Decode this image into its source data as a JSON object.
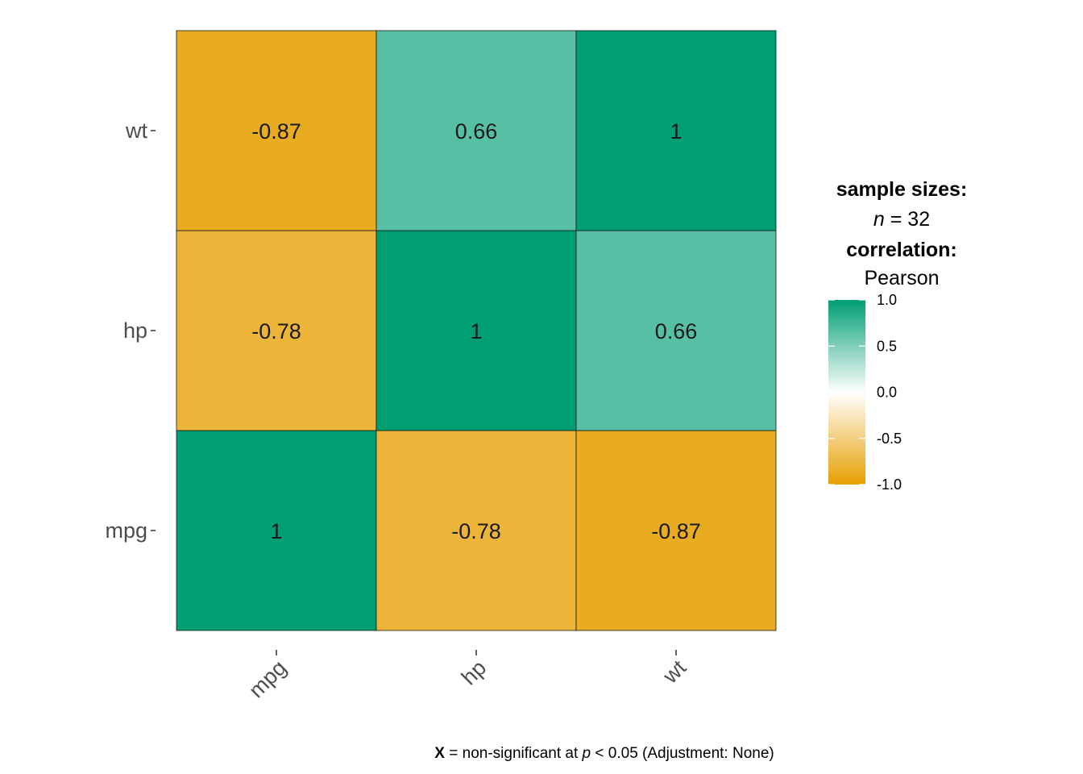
{
  "chart_data": {
    "type": "heatmap",
    "x_categories": [
      "mpg",
      "hp",
      "wt"
    ],
    "y_categories": [
      "mpg",
      "hp",
      "wt"
    ],
    "matrix": [
      [
        1,
        -0.78,
        -0.87
      ],
      [
        -0.78,
        1,
        0.66
      ],
      [
        -0.87,
        0.66,
        1
      ]
    ],
    "cell_labels": [
      [
        "1",
        "-0.78",
        "-0.87"
      ],
      [
        "-0.78",
        "1",
        "0.66"
      ],
      [
        "-0.87",
        "0.66",
        "1"
      ]
    ],
    "colorscale": {
      "low": "#E69F00",
      "mid": "#FFFFFF",
      "high": "#009E73",
      "limits": [
        -1,
        1
      ],
      "ticks": [
        "1.0",
        "0.5",
        "0.0",
        "-0.5",
        "-1.0"
      ],
      "tick_values": [
        1.0,
        0.5,
        0.0,
        -0.5,
        -1.0
      ]
    },
    "legend": {
      "sample_sizes_title": "sample sizes:",
      "n_symbol": "n",
      "n_equals": " = 32",
      "correlation_title": "correlation:",
      "correlation_method": "Pearson"
    },
    "caption": {
      "bold": "X",
      "text1": " = non-significant at ",
      "italic": "p",
      "text2": " < 0.05 (Adjustment: None)"
    }
  }
}
